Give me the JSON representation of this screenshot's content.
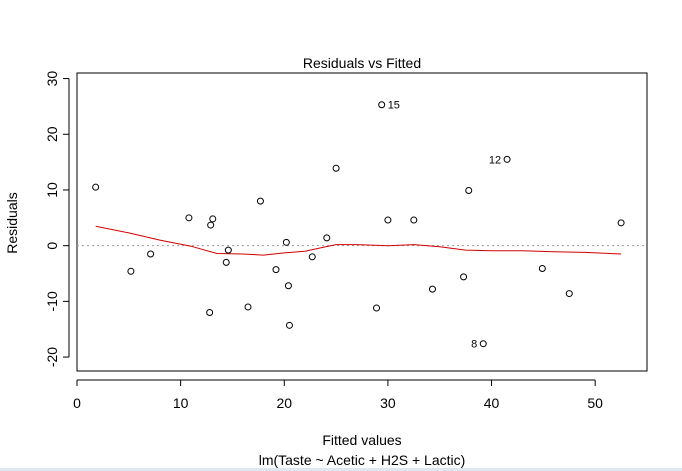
{
  "chart_data": {
    "type": "scatter",
    "title": "Residuals vs Fitted",
    "xlabel": "Fitted values",
    "ylabel": "Residuals",
    "subtitle": "lm(Taste ~ Acetic + H2S + Lactic)",
    "xlim": [
      0,
      55
    ],
    "ylim": [
      -22.5,
      31
    ],
    "x_ticks": [
      0,
      10,
      20,
      30,
      40,
      50
    ],
    "y_ticks": [
      -20,
      -10,
      0,
      10,
      20,
      30
    ],
    "reference_line": 0,
    "points": [
      {
        "x": 1.8,
        "y": 10.5
      },
      {
        "x": 5.2,
        "y": -4.6
      },
      {
        "x": 7.1,
        "y": -1.5
      },
      {
        "x": 10.8,
        "y": 5.0
      },
      {
        "x": 12.8,
        "y": -12.0
      },
      {
        "x": 12.9,
        "y": 3.7
      },
      {
        "x": 13.1,
        "y": 4.8
      },
      {
        "x": 14.4,
        "y": -3.0
      },
      {
        "x": 14.6,
        "y": -0.8
      },
      {
        "x": 16.5,
        "y": -11.0
      },
      {
        "x": 17.7,
        "y": 8.0
      },
      {
        "x": 19.2,
        "y": -4.3
      },
      {
        "x": 20.2,
        "y": 0.6
      },
      {
        "x": 20.4,
        "y": -7.2
      },
      {
        "x": 20.5,
        "y": -14.3
      },
      {
        "x": 22.7,
        "y": -2.0
      },
      {
        "x": 24.1,
        "y": 1.4
      },
      {
        "x": 25.0,
        "y": 13.9
      },
      {
        "x": 28.9,
        "y": -11.2
      },
      {
        "x": 29.4,
        "y": 25.3,
        "label": "15"
      },
      {
        "x": 30.0,
        "y": 4.6
      },
      {
        "x": 32.5,
        "y": 4.6
      },
      {
        "x": 34.3,
        "y": -7.8
      },
      {
        "x": 37.3,
        "y": -5.6
      },
      {
        "x": 37.8,
        "y": 9.9
      },
      {
        "x": 39.2,
        "y": -17.6,
        "label": "8"
      },
      {
        "x": 41.5,
        "y": 15.5,
        "label": "12"
      },
      {
        "x": 44.9,
        "y": -4.1
      },
      {
        "x": 47.5,
        "y": -8.6
      },
      {
        "x": 52.5,
        "y": 4.1
      }
    ],
    "smooth_line": {
      "color": "#d00000",
      "x": [
        1.8,
        5,
        8,
        11,
        13.5,
        16,
        18,
        20,
        22,
        24,
        25,
        27,
        30,
        32.5,
        35,
        37.5,
        40,
        43,
        46,
        49,
        52.5
      ],
      "y": [
        3.5,
        2.3,
        1.0,
        -0.1,
        -1.4,
        -1.5,
        -1.7,
        -1.3,
        -1.0,
        -0.2,
        0.2,
        0.2,
        0.0,
        0.2,
        -0.2,
        -0.8,
        -0.9,
        -0.9,
        -1.1,
        -1.2,
        -1.5
      ]
    },
    "colors": {
      "points": "#000000",
      "smooth": "#d00000",
      "reference": "#999999"
    }
  }
}
